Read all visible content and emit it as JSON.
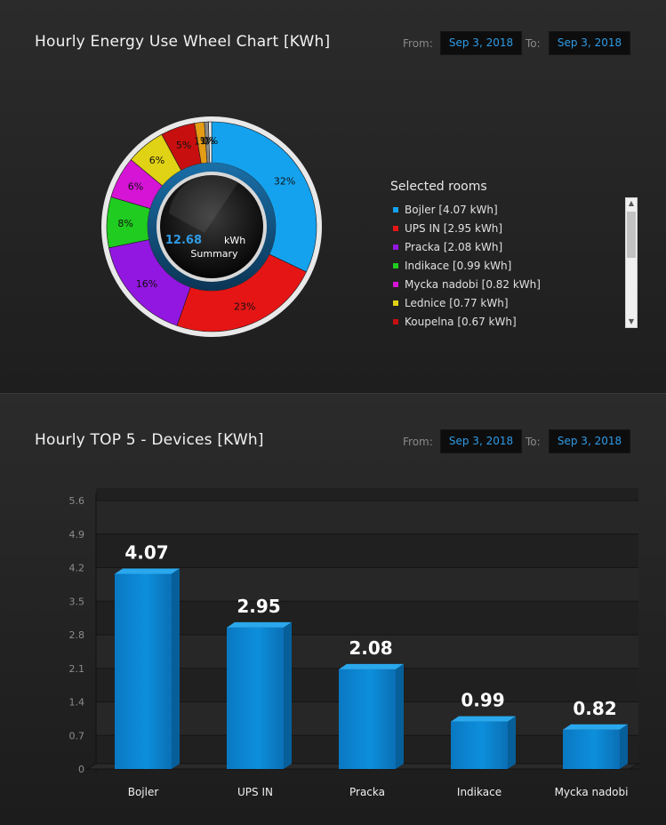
{
  "panel1": {
    "title": "Hourly Energy Use Wheel Chart [KWh]",
    "from_label": "From:",
    "from_date": "Sep 3, 2018",
    "to_label": "To:",
    "to_date": "Sep 3, 2018",
    "center_value": "12.68",
    "center_unit": "kWh",
    "center_caption": "Summary",
    "legend_title": "Selected rooms"
  },
  "panel2": {
    "title": "Hourly TOP 5 - Devices [KWh]",
    "from_label": "From:",
    "from_date": "Sep 3, 2018",
    "to_label": "To:",
    "to_date": "Sep 3, 2018"
  },
  "chart_data": [
    {
      "type": "pie",
      "title": "Hourly Energy Use Wheel Chart [KWh]",
      "legend_title": "Selected rooms",
      "legend_position": "right",
      "total": 12.68,
      "slices": [
        {
          "name": "Bojler",
          "value": 4.07,
          "legend": "Bojler [4.07 kWh]",
          "label": "32%",
          "color": "#14a2ef"
        },
        {
          "name": "UPS IN",
          "value": 2.95,
          "legend": "UPS IN [2.95 kWh]",
          "label": "23%",
          "color": "#e61515"
        },
        {
          "name": "Pracka",
          "value": 2.08,
          "legend": "Pracka [2.08 kWh]",
          "label": "16%",
          "color": "#9217e0"
        },
        {
          "name": "Indikace",
          "value": 0.99,
          "legend": "Indikace [0.99 kWh]",
          "label": "8%",
          "color": "#1fcc1f"
        },
        {
          "name": "Mycka nadobi",
          "value": 0.82,
          "legend": "Mycka nadobi [0.82 kWh]",
          "label": "6%",
          "color": "#d514d5"
        },
        {
          "name": "Lednice",
          "value": 0.77,
          "legend": "Lednice [0.77 kWh]",
          "label": "6%",
          "color": "#e0d214"
        },
        {
          "name": "Koupelna",
          "value": 0.67,
          "legend": "Koupelna [0.67 kWh]",
          "label": "5%",
          "color": "#c70f0f"
        },
        {
          "name": "",
          "value": 0.19,
          "label": "1%",
          "color": "#e39c14"
        },
        {
          "name": "",
          "value": 0.08,
          "label": "1%",
          "color": "#8a8a8a"
        },
        {
          "name": "",
          "value": 0.06,
          "label": "0%",
          "color": "#f2f2f2"
        }
      ]
    },
    {
      "type": "bar",
      "title": "Hourly TOP 5 - Devices [KWh]",
      "categories": [
        "Bojler",
        "UPS IN",
        "Pracka",
        "Indikace",
        "Mycka nadobi"
      ],
      "values": [
        4.07,
        2.95,
        2.08,
        0.99,
        0.82
      ],
      "value_labels": [
        "4.07",
        "2.95",
        "2.08",
        "0.99",
        "0.82"
      ],
      "yticks": [
        "0",
        "0.7",
        "1.4",
        "2.1",
        "2.8",
        "3.5",
        "4.2",
        "4.9",
        "5.6"
      ],
      "ylim": [
        0,
        5.6
      ],
      "grid": true,
      "color": "#0d8bd6"
    }
  ]
}
